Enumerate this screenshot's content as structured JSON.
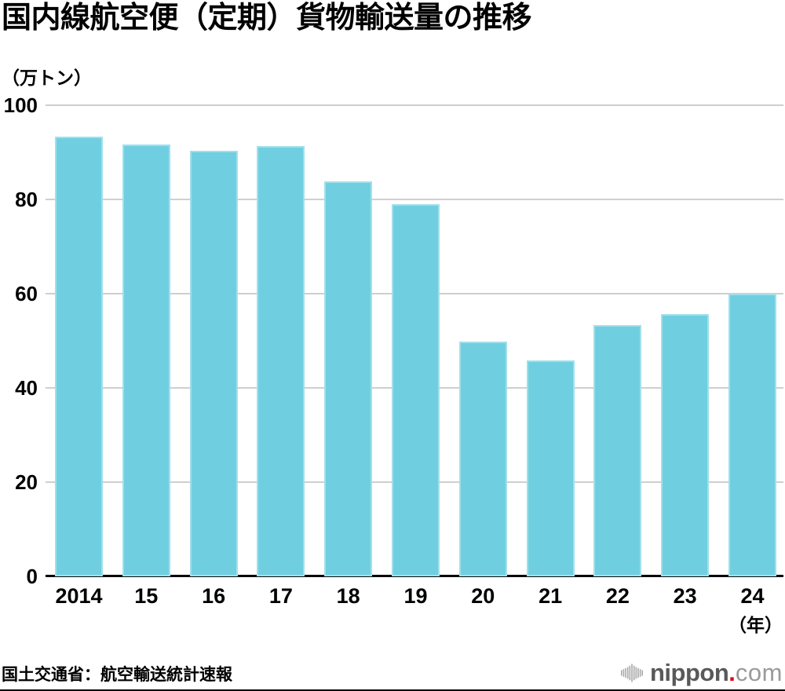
{
  "header": {
    "title": "国内線航空便（定期）貨物輸送量の推移",
    "unit_label": "（万トン）"
  },
  "chart_data": {
    "type": "bar",
    "categories": [
      "2014",
      "15",
      "16",
      "17",
      "18",
      "19",
      "20",
      "21",
      "22",
      "23",
      "24"
    ],
    "values": [
      93.3,
      91.7,
      90.3,
      91.4,
      83.8,
      79.0,
      49.8,
      45.9,
      53.4,
      55.6,
      60.0
    ],
    "title": "国内線航空便（定期）貨物輸送量の推移",
    "xlabel": "（年）",
    "ylabel": "（万トン）",
    "ylim": [
      0,
      100
    ],
    "yticks": [
      0,
      20,
      40,
      60,
      80,
      100
    ],
    "x_axis_suffix": "（年）",
    "grid": true,
    "legend": "none",
    "bar_color": "#6fcfe0"
  },
  "colors": {
    "bar": "#6fcfe0",
    "grid": "#cfcfcf",
    "axis": "#0a0a0a"
  },
  "footer": {
    "source": "国土交通省：航空輸送統計速報",
    "logo": {
      "brand": "nippon",
      "dot": ".",
      "tld": "com",
      "brand_color": "#595959",
      "dot_color": "#e60012",
      "tld_color": "#9a9a9a",
      "icon_color": "#a8a8a8"
    }
  }
}
